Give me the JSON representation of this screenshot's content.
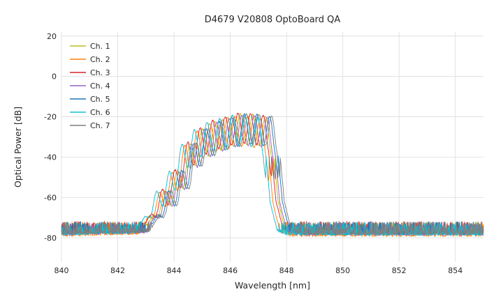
{
  "chart_data": {
    "type": "line",
    "title": "D4679 V20808 OptoBoard QA",
    "xlabel": "Wavelength [nm]",
    "ylabel": "Optical Power [dB]",
    "xlim": [
      840,
      855
    ],
    "ylim": [
      -92,
      22
    ],
    "x_ticks": [
      840,
      842,
      844,
      846,
      848,
      850,
      852,
      854
    ],
    "y_ticks": [
      20,
      0,
      -20,
      -40,
      -60,
      -80
    ],
    "grid": true,
    "legend_position": "upper left",
    "noise_floor_db": -77,
    "noise_amplitude_db": 5,
    "mode_spacing_nm": 0.45,
    "mode_phase_center_nm": 846.35,
    "envelope_keypoints": [
      [
        840.0,
        -78
      ],
      [
        842.9,
        -77
      ],
      [
        843.2,
        -70
      ],
      [
        843.6,
        -58
      ],
      [
        844.1,
        -47
      ],
      [
        844.6,
        -32
      ],
      [
        845.0,
        -26
      ],
      [
        845.5,
        -22
      ],
      [
        846.0,
        -20
      ],
      [
        846.4,
        -18.5
      ],
      [
        846.9,
        -19
      ],
      [
        847.3,
        -20
      ],
      [
        847.45,
        -24
      ],
      [
        847.7,
        -62
      ],
      [
        847.95,
        -76
      ],
      [
        848.3,
        -78
      ],
      [
        855.0,
        -78
      ]
    ],
    "series": [
      {
        "name": "Ch. 1",
        "color": "#bcbd22",
        "offset_nm": 0.0,
        "level_db": 0.0
      },
      {
        "name": "Ch. 2",
        "color": "#ff7f0e",
        "offset_nm": -0.18,
        "level_db": -1.0
      },
      {
        "name": "Ch. 3",
        "color": "#d62728",
        "offset_nm": -0.08,
        "level_db": 0.5
      },
      {
        "name": "Ch. 4",
        "color": "#9467bd",
        "offset_nm": 0.06,
        "level_db": -0.5
      },
      {
        "name": "Ch. 5",
        "color": "#1f77b4",
        "offset_nm": 0.15,
        "level_db": 0.0
      },
      {
        "name": "Ch. 6",
        "color": "#17becf",
        "offset_nm": -0.28,
        "level_db": -0.5
      },
      {
        "name": "Ch. 7",
        "color": "#7f7f7f",
        "offset_nm": 0.22,
        "level_db": 0.0
      }
    ]
  }
}
